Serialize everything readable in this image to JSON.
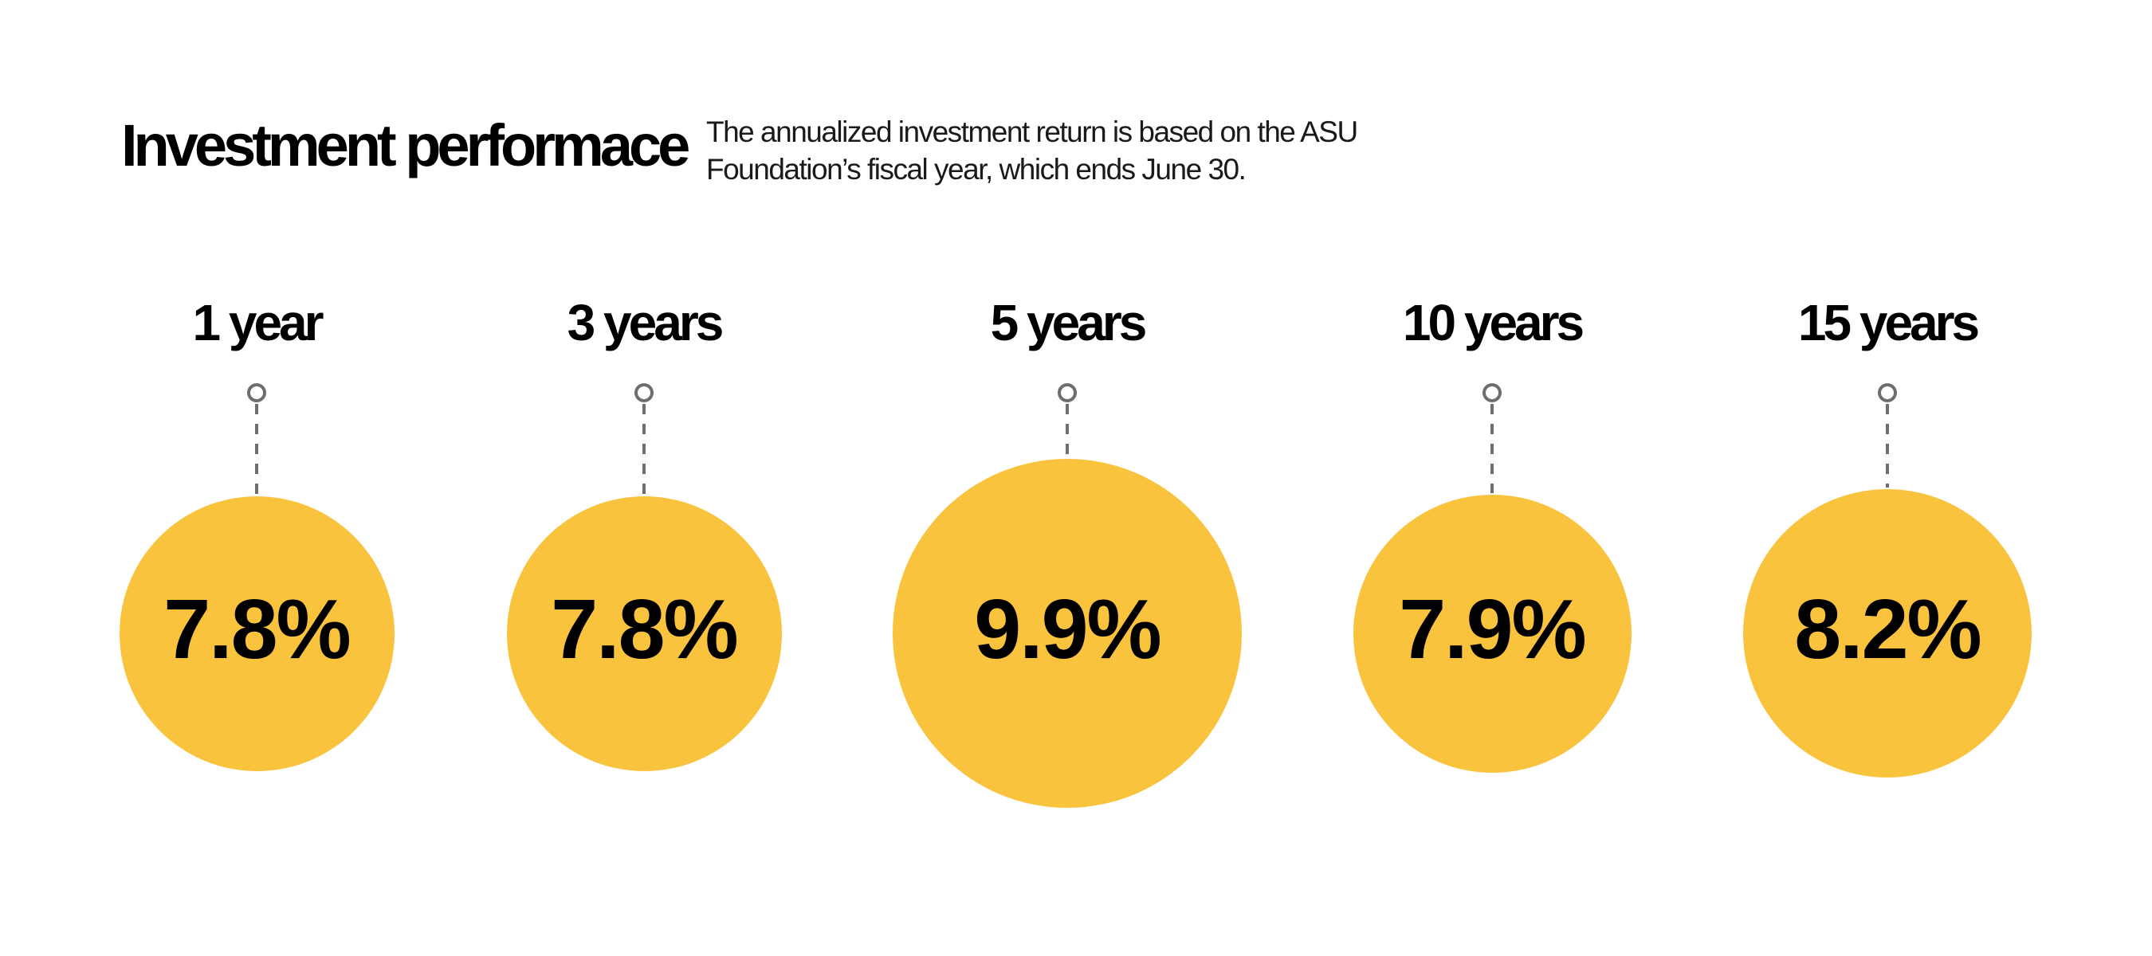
{
  "page": {
    "background_color": "#FFFFFF"
  },
  "chart_data": {
    "type": "bubble",
    "title": "Investment performace",
    "subtitle": "The annualized investment return is based on the ASU Foundation’s fiscal year, which ends June 30.",
    "categories": [
      "1 year",
      "3 years",
      "5 years",
      "10 years",
      "15 years"
    ],
    "values": [
      7.8,
      7.8,
      9.9,
      7.9,
      8.2
    ],
    "value_labels": [
      "7.8%",
      "7.8%",
      "9.9%",
      "7.9%",
      "8.2%"
    ],
    "unit": "%",
    "bubble_color": "#F9C33D",
    "connector_color": "#6E6E6E",
    "text_color": "#000000",
    "layout": "five bubbles in a row, bubble diameter proportional to value, each hanging from a small ring by a vertical dashed connector, value label centered in bubble, period label above",
    "legend": "none",
    "grid": "off"
  }
}
